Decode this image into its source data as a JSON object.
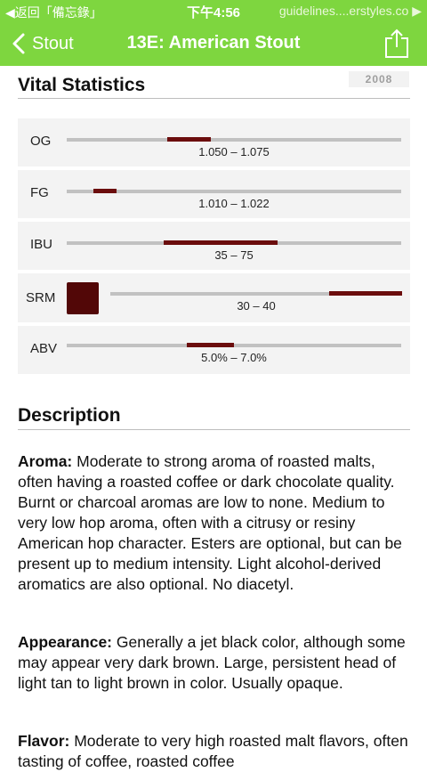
{
  "status_bar": {
    "back_label": "◀返回「備忘錄」",
    "time": "下午4:56",
    "url": "guidelines....erstyles.co ▶"
  },
  "nav": {
    "back_label": "Stout",
    "title": "13E: American Stout"
  },
  "vital_statistics": {
    "heading": "Vital Statistics",
    "year": "2008",
    "stats": [
      {
        "label": "OG",
        "range": "1.050 – 1.075",
        "low": 0.3,
        "high": 0.43
      },
      {
        "label": "FG",
        "range": "1.010 – 1.022",
        "low": 0.08,
        "high": 0.15
      },
      {
        "label": "IBU",
        "range": "35 – 75",
        "low": 0.29,
        "high": 0.63
      },
      {
        "label": "SRM",
        "range": "30 – 40",
        "low": 0.75,
        "high": 1.0,
        "swatch_color": "#520707"
      },
      {
        "label": "ABV",
        "range": "5.0% – 7.0%",
        "low": 0.36,
        "high": 0.5
      }
    ]
  },
  "description": {
    "heading": "Description",
    "aroma_label": "Aroma:",
    "aroma_text": " Moderate to strong aroma of roasted malts, often having a roasted coffee or dark chocolate quality. Burnt or charcoal aromas are low to none. Medium to very low hop aroma, often with a citrusy or resiny American hop character. Esters are optional, but can be present up to medium intensity. Light alcohol-derived aromatics are also optional. No diacetyl.",
    "appearance_label": "Appearance:",
    "appearance_text": " Generally a jet black color, although some may appear very dark brown. Large, persistent head of light tan to light brown in color. Usually opaque.",
    "flavor_label": "Flavor:",
    "flavor_text": " Moderate to very high roasted malt flavors, often tasting of coffee, roasted coffee"
  },
  "colors": {
    "accent": "#7ed63f",
    "range_fill": "#6b0d0d",
    "track": "#c1c1c1"
  }
}
